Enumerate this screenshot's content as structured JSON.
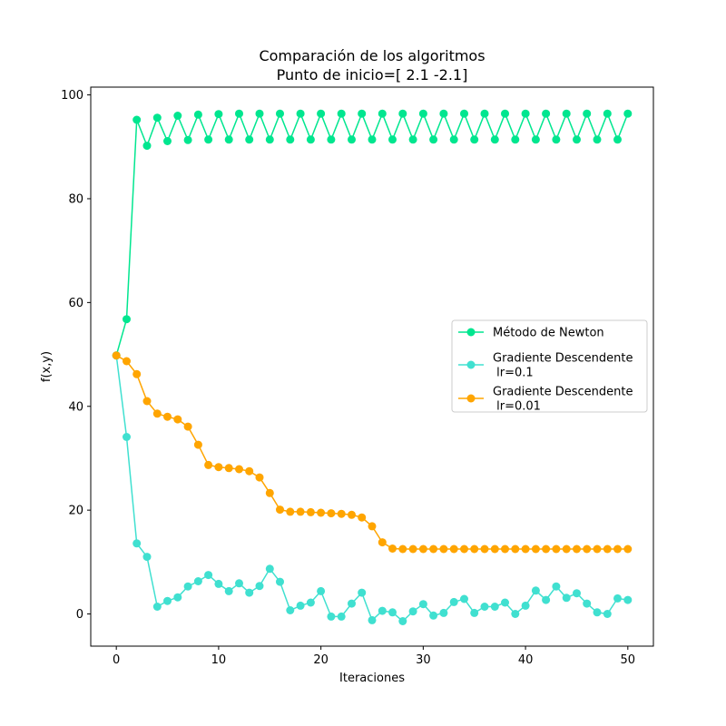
{
  "chart_data": {
    "type": "line",
    "title": "Comparación de los algoritmos",
    "subtitle": "Punto de inicio=[ 2.1 -2.1]",
    "xlabel": "Iteraciones",
    "ylabel": "f(x,y)",
    "xlim": [
      -2.5,
      52.5
    ],
    "ylim": [
      -6.2,
      101.5
    ],
    "xticks": [
      0,
      10,
      20,
      30,
      40,
      50
    ],
    "yticks": [
      0,
      20,
      40,
      60,
      80,
      100
    ],
    "legend_position": "center-right",
    "grid": false,
    "series": [
      {
        "name": "Método de Newton",
        "color": "#00e68f",
        "x": [
          0,
          1,
          2,
          3,
          4,
          5,
          6,
          7,
          8,
          9,
          10,
          11,
          12,
          13,
          14,
          15,
          16,
          17,
          18,
          19,
          20,
          21,
          22,
          23,
          24,
          25,
          26,
          27,
          28,
          29,
          30,
          31,
          32,
          33,
          34,
          35,
          36,
          37,
          38,
          39,
          40,
          41,
          42,
          43,
          44,
          45,
          46,
          47,
          48,
          49,
          50
        ],
        "y": [
          49.8,
          56.8,
          95.2,
          90.2,
          95.6,
          91.1,
          96.0,
          91.3,
          96.2,
          91.4,
          96.3,
          91.4,
          96.4,
          91.4,
          96.4,
          91.4,
          96.4,
          91.4,
          96.4,
          91.4,
          96.4,
          91.4,
          96.4,
          91.4,
          96.4,
          91.4,
          96.4,
          91.4,
          96.4,
          91.4,
          96.4,
          91.4,
          96.4,
          91.4,
          96.4,
          91.4,
          96.4,
          91.4,
          96.4,
          91.4,
          96.4,
          91.4,
          96.4,
          91.4,
          96.4,
          91.4,
          96.4,
          91.4,
          96.4,
          91.4,
          96.4
        ]
      },
      {
        "name": "Gradiente Descendente\n lr=0.1",
        "color": "#40e0d0",
        "x": [
          0,
          1,
          2,
          3,
          4,
          5,
          6,
          7,
          8,
          9,
          10,
          11,
          12,
          13,
          14,
          15,
          16,
          17,
          18,
          19,
          20,
          21,
          22,
          23,
          24,
          25,
          26,
          27,
          28,
          29,
          30,
          31,
          32,
          33,
          34,
          35,
          36,
          37,
          38,
          39,
          40,
          41,
          42,
          43,
          44,
          45,
          46,
          47,
          48,
          49,
          50
        ],
        "y": [
          49.8,
          34.1,
          13.6,
          11.0,
          1.4,
          2.5,
          3.2,
          5.3,
          6.3,
          7.5,
          5.8,
          4.4,
          5.9,
          4.1,
          5.4,
          8.7,
          6.2,
          0.7,
          1.6,
          2.2,
          4.4,
          -0.5,
          -0.5,
          2.0,
          4.1,
          -1.2,
          0.6,
          0.3,
          -1.4,
          0.5,
          1.9,
          -0.3,
          0.2,
          2.3,
          2.9,
          0.2,
          1.4,
          1.4,
          2.2,
          0.0,
          1.6,
          4.5,
          2.7,
          5.3,
          3.1,
          4.0,
          2.0,
          0.3,
          0.0,
          3.0,
          2.7
        ]
      },
      {
        "name": "Gradiente Descendente\n lr=0.01",
        "color": "#ffa500",
        "x": [
          0,
          1,
          2,
          3,
          4,
          5,
          6,
          7,
          8,
          9,
          10,
          11,
          12,
          13,
          14,
          15,
          16,
          17,
          18,
          19,
          20,
          21,
          22,
          23,
          24,
          25,
          26,
          27,
          28,
          29,
          30,
          31,
          32,
          33,
          34,
          35,
          36,
          37,
          38,
          39,
          40,
          41,
          42,
          43,
          44,
          45,
          46,
          47,
          48,
          49,
          50
        ],
        "y": [
          49.8,
          48.7,
          46.2,
          41.0,
          38.6,
          38.0,
          37.5,
          36.1,
          32.6,
          28.7,
          28.3,
          28.1,
          27.9,
          27.5,
          26.3,
          23.3,
          20.1,
          19.7,
          19.7,
          19.6,
          19.5,
          19.4,
          19.3,
          19.1,
          18.6,
          16.9,
          13.8,
          12.6,
          12.5,
          12.5,
          12.5,
          12.5,
          12.5,
          12.5,
          12.5,
          12.5,
          12.5,
          12.5,
          12.5,
          12.5,
          12.5,
          12.5,
          12.5,
          12.5,
          12.5,
          12.5,
          12.5,
          12.5,
          12.5,
          12.5,
          12.5
        ]
      }
    ]
  }
}
